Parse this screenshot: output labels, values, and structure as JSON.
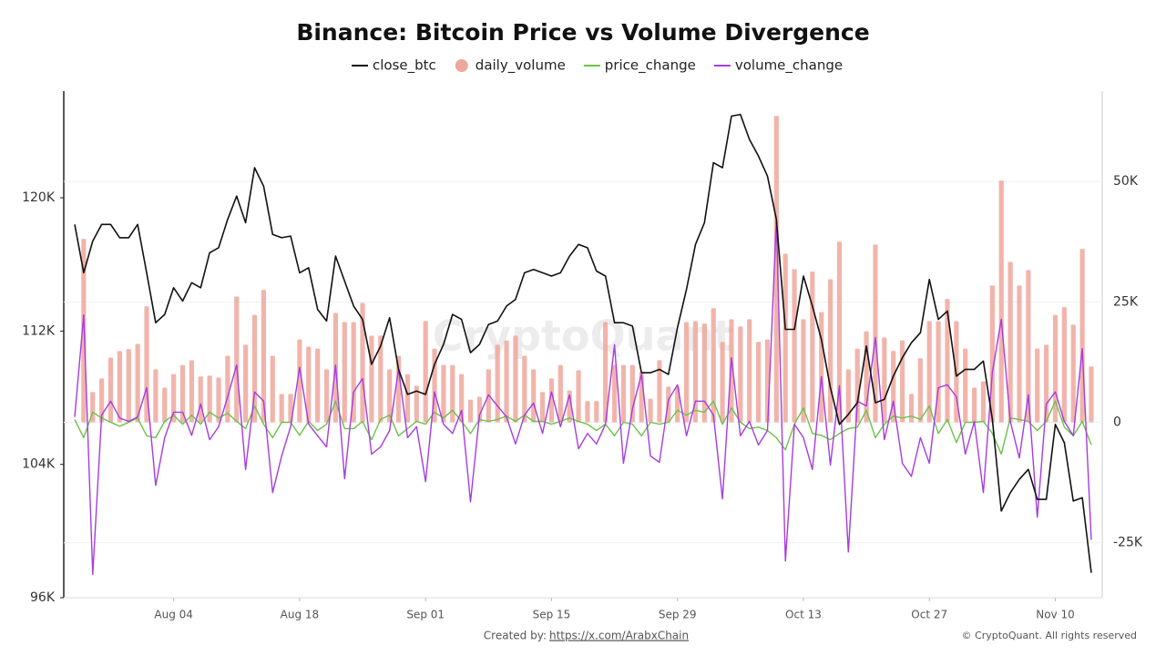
{
  "chart_data": {
    "type": "combo",
    "title": "Binance: Bitcoin Price vs Volume Divergence",
    "watermark": "CryptoQuant",
    "footer_left_label": "Created by:",
    "footer_link": "https://x.com/ArabxChain",
    "footer_right": "© CryptoQuant. All rights reserved",
    "categories": [
      "Jul 24",
      "Jul 25",
      "Jul 26",
      "Jul 27",
      "Jul 28",
      "Jul 29",
      "Jul 30",
      "Jul 31",
      "Aug 01",
      "Aug 02",
      "Aug 03",
      "Aug 04",
      "Aug 05",
      "Aug 06",
      "Aug 07",
      "Aug 08",
      "Aug 09",
      "Aug 10",
      "Aug 11",
      "Aug 12",
      "Aug 13",
      "Aug 14",
      "Aug 15",
      "Aug 16",
      "Aug 17",
      "Aug 18",
      "Aug 19",
      "Aug 20",
      "Aug 21",
      "Aug 22",
      "Aug 23",
      "Aug 24",
      "Aug 25",
      "Aug 26",
      "Aug 27",
      "Aug 28",
      "Aug 29",
      "Aug 30",
      "Aug 31",
      "Sep 01",
      "Sep 02",
      "Sep 03",
      "Sep 04",
      "Sep 05",
      "Sep 06",
      "Sep 07",
      "Sep 08",
      "Sep 09",
      "Sep 10",
      "Sep 11",
      "Sep 12",
      "Sep 13",
      "Sep 14",
      "Sep 15",
      "Sep 16",
      "Sep 17",
      "Sep 18",
      "Sep 19",
      "Sep 20",
      "Sep 21",
      "Sep 22",
      "Sep 23",
      "Sep 24",
      "Sep 25",
      "Sep 26",
      "Sep 27",
      "Sep 28",
      "Sep 29",
      "Sep 30",
      "Oct 01",
      "Oct 02",
      "Oct 03",
      "Oct 04",
      "Oct 05",
      "Oct 06",
      "Oct 07",
      "Oct 08",
      "Oct 09",
      "Oct 10",
      "Oct 11",
      "Oct 12",
      "Oct 13",
      "Oct 14",
      "Oct 15",
      "Oct 16",
      "Oct 17",
      "Oct 18",
      "Oct 19",
      "Oct 20",
      "Oct 21",
      "Oct 22",
      "Oct 23",
      "Oct 24",
      "Oct 25",
      "Oct 26",
      "Oct 27",
      "Oct 28",
      "Oct 29",
      "Oct 30",
      "Oct 31",
      "Nov 01",
      "Nov 02",
      "Nov 03",
      "Nov 04",
      "Nov 05",
      "Nov 06",
      "Nov 07",
      "Nov 08",
      "Nov 09",
      "Nov 10",
      "Nov 11",
      "Nov 12",
      "Nov 13",
      "Nov 14"
    ],
    "xticks": [
      "Aug 04",
      "Aug 18",
      "Sep 01",
      "Sep 15",
      "Sep 29",
      "Oct 13",
      "Oct 27",
      "Nov 10"
    ],
    "ylim": [
      96000,
      126400
    ],
    "yticks": [
      {
        "value": 96000,
        "label": "96K"
      },
      {
        "value": 104000,
        "label": "104K"
      },
      {
        "value": 112000,
        "label": "112K"
      },
      {
        "value": 120000,
        "label": "120K"
      }
    ],
    "y2lim": [
      -36400,
      68750
    ],
    "y2ticks": [
      {
        "value": -25000,
        "label": "-25K"
      },
      0,
      {
        "value": 25000,
        "label": "25K"
      },
      {
        "value": 50000,
        "label": "50K"
      }
    ],
    "grid": true,
    "series": [
      {
        "name": "close_btc",
        "kind": "line",
        "color": "#111111",
        "axis": "y",
        "values": [
          118400,
          115500,
          117400,
          118400,
          118400,
          117600,
          117600,
          118400,
          115500,
          112500,
          113000,
          114600,
          113800,
          114900,
          114600,
          116700,
          117000,
          118700,
          120100,
          118500,
          121800,
          120700,
          117800,
          117600,
          117700,
          115500,
          115800,
          113300,
          112600,
          116500,
          115000,
          113500,
          112700,
          110000,
          111100,
          112800,
          109700,
          108200,
          108400,
          108200,
          110000,
          111200,
          113000,
          112700,
          110700,
          111200,
          112400,
          112600,
          113500,
          113900,
          115500,
          115700,
          115500,
          115300,
          115500,
          116500,
          117200,
          117000,
          115600,
          115300,
          112500,
          112500,
          112300,
          109500,
          109500,
          109700,
          109400,
          112200,
          114500,
          117200,
          118500,
          122100,
          121800,
          124900,
          125000,
          123500,
          122500,
          121300,
          118700,
          112100,
          112100,
          115300,
          113500,
          111500,
          108600,
          106400,
          107000,
          107700,
          111100,
          107700,
          107900,
          109300,
          110400,
          111300,
          111900,
          115100,
          112700,
          113200,
          109300,
          109700,
          109700,
          110200,
          106700,
          101200,
          102300,
          103100,
          103700,
          101900,
          101900,
          106400,
          105300,
          101800,
          102000,
          97500
        ]
      },
      {
        "name": "daily_volume",
        "kind": "bar",
        "color": "#eea79c",
        "axis": "y2",
        "values": [
          null,
          38100,
          6300,
          9100,
          13400,
          14800,
          15200,
          16300,
          24100,
          11000,
          7200,
          10000,
          11900,
          12900,
          9500,
          9700,
          9300,
          13800,
          26100,
          16100,
          22300,
          27500,
          13800,
          5900,
          5900,
          17200,
          15700,
          15300,
          11000,
          22700,
          20800,
          20800,
          24800,
          18000,
          18000,
          11000,
          13800,
          10000,
          7600,
          21000,
          15300,
          11900,
          11900,
          10000,
          4700,
          5300,
          11000,
          16100,
          17000,
          18000,
          13800,
          11000,
          6300,
          9100,
          11900,
          6600,
          10800,
          4400,
          4400,
          20800,
          11900,
          11900,
          11900,
          10400,
          4900,
          12900,
          7400,
          7400,
          20800,
          21000,
          20500,
          23700,
          16700,
          21400,
          19900,
          21400,
          16700,
          17200,
          63600,
          35000,
          31800,
          21400,
          31300,
          22900,
          29700,
          37500,
          11000,
          15300,
          18900,
          36900,
          17600,
          14800,
          17000,
          5900,
          13300,
          21000,
          21000,
          25600,
          21000,
          15300,
          7200,
          8500,
          28400,
          50200,
          33300,
          28400,
          31600,
          15300,
          16100,
          22300,
          23900,
          20300,
          36000,
          11600
        ]
      },
      {
        "name": "price_change",
        "kind": "line",
        "color": "#6cc24a",
        "axis": "y2",
        "values": [
          600,
          -3200,
          2100,
          900,
          0,
          -800,
          0,
          900,
          -2800,
          -3200,
          200,
          1500,
          -400,
          1500,
          -400,
          2100,
          900,
          1900,
          200,
          -1300,
          3400,
          -400,
          -3200,
          0,
          0,
          -2700,
          200,
          -1700,
          -400,
          4400,
          -1300,
          -1300,
          200,
          -3600,
          600,
          1500,
          -2800,
          -1300,
          200,
          -400,
          2100,
          900,
          2500,
          200,
          -2300,
          600,
          200,
          600,
          1300,
          200,
          1500,
          200,
          200,
          -400,
          200,
          900,
          200,
          -400,
          -1700,
          -400,
          -2800,
          0,
          -400,
          -2800,
          0,
          -400,
          0,
          2500,
          1500,
          2500,
          2100,
          4400,
          -400,
          3000,
          0,
          -1300,
          -1000,
          -1700,
          -3200,
          -5700,
          -400,
          3000,
          -2300,
          -2700,
          -3600,
          -2300,
          -1300,
          -1000,
          2500,
          -3200,
          -400,
          1300,
          900,
          1300,
          600,
          3400,
          -2300,
          600,
          -4200,
          0,
          0,
          200,
          -2300,
          -6600,
          900,
          600,
          200,
          -1700,
          200,
          4400,
          -1000,
          -2800,
          200,
          -4700
        ]
      },
      {
        "name": "volume_change",
        "kind": "line",
        "color": "#a63ce0",
        "axis": "y2",
        "values": [
          1100,
          22300,
          -31600,
          1500,
          4400,
          900,
          200,
          1100,
          7200,
          -13100,
          -3200,
          2100,
          2100,
          -2700,
          3800,
          -3600,
          -900,
          5300,
          11900,
          -9800,
          6300,
          4400,
          -14600,
          -7000,
          -900,
          11400,
          -400,
          -2800,
          -5100,
          11900,
          -11700,
          6300,
          9100,
          -6600,
          -5100,
          -1700,
          11000,
          -3200,
          -900,
          -12300,
          6300,
          -400,
          -2300,
          2500,
          -16500,
          1500,
          5700,
          3400,
          1100,
          -4500,
          1500,
          4000,
          -2300,
          6300,
          -900,
          5700,
          -5500,
          -2300,
          -4500,
          -400,
          16100,
          -8500,
          2800,
          10000,
          -7000,
          -8300,
          4700,
          7800,
          -2800,
          4400,
          4400,
          1500,
          -15900,
          13400,
          -2800,
          200,
          -4700,
          -1700,
          42200,
          -28800,
          -400,
          -3200,
          -9800,
          9500,
          -8900,
          7600,
          -26900,
          4400,
          3400,
          17600,
          -3600,
          4400,
          -8500,
          -11200,
          -3200,
          -8500,
          7200,
          7800,
          5300,
          -6600,
          200,
          -14600,
          10400,
          21400,
          200,
          -7400,
          5700,
          -19700,
          3800,
          6300,
          200,
          -2800,
          15300,
          -24400
        ]
      }
    ]
  }
}
